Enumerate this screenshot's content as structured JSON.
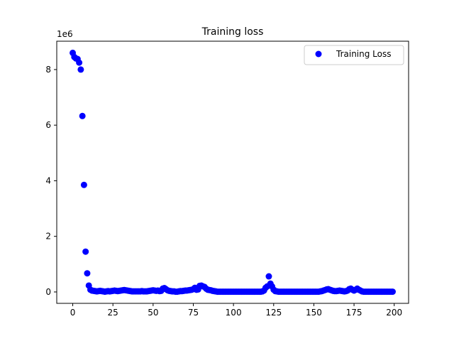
{
  "chart_data": {
    "type": "scatter",
    "title": "Training loss",
    "xlabel": "",
    "ylabel": "",
    "xlim": [
      -9.95,
      208.95
    ],
    "ylim": [
      -410000,
      9020000
    ],
    "x_ticks": [
      0,
      25,
      50,
      75,
      100,
      125,
      150,
      175,
      200
    ],
    "y_ticks": [
      0,
      2000000,
      4000000,
      6000000,
      8000000
    ],
    "y_tick_labels": [
      "0",
      "2",
      "4",
      "6",
      "8"
    ],
    "y_offset_label": "1e6",
    "grid": false,
    "legend_position": "top-right",
    "marker_color": "#0000ff",
    "series": [
      {
        "name": "Training Loss",
        "x": [
          0,
          1,
          2,
          3,
          4,
          5,
          6,
          7,
          8,
          9,
          10,
          11,
          12,
          13,
          14,
          15,
          16,
          17,
          18,
          19,
          20,
          21,
          22,
          23,
          24,
          25,
          26,
          27,
          28,
          29,
          30,
          31,
          32,
          33,
          34,
          35,
          36,
          37,
          38,
          39,
          40,
          41,
          42,
          43,
          44,
          45,
          46,
          47,
          48,
          49,
          50,
          51,
          52,
          53,
          54,
          55,
          56,
          57,
          58,
          59,
          60,
          61,
          62,
          63,
          64,
          65,
          66,
          67,
          68,
          69,
          70,
          71,
          72,
          73,
          74,
          75,
          76,
          77,
          78,
          79,
          80,
          81,
          82,
          83,
          84,
          85,
          86,
          87,
          88,
          89,
          90,
          91,
          92,
          93,
          94,
          95,
          96,
          97,
          98,
          99,
          100,
          101,
          102,
          103,
          104,
          105,
          106,
          107,
          108,
          109,
          110,
          111,
          112,
          113,
          114,
          115,
          116,
          117,
          118,
          119,
          120,
          121,
          122,
          123,
          124,
          125,
          126,
          127,
          128,
          129,
          130,
          131,
          132,
          133,
          134,
          135,
          136,
          137,
          138,
          139,
          140,
          141,
          142,
          143,
          144,
          145,
          146,
          147,
          148,
          149,
          150,
          151,
          152,
          153,
          154,
          155,
          156,
          157,
          158,
          159,
          160,
          161,
          162,
          163,
          164,
          165,
          166,
          167,
          168,
          169,
          170,
          171,
          172,
          173,
          174,
          175,
          176,
          177,
          178,
          179,
          180,
          181,
          182,
          183,
          184,
          185,
          186,
          187,
          188,
          189,
          190,
          191,
          192,
          193,
          194,
          195,
          196,
          197,
          198,
          199
        ],
        "y": [
          8600000,
          8450000,
          8400000,
          8380000,
          8250000,
          8000000,
          6330000,
          3850000,
          1450000,
          670000,
          230000,
          80000,
          50000,
          40000,
          30000,
          20000,
          30000,
          40000,
          30000,
          20000,
          10000,
          20000,
          30000,
          20000,
          30000,
          40000,
          50000,
          40000,
          30000,
          40000,
          50000,
          60000,
          70000,
          60000,
          50000,
          40000,
          30000,
          20000,
          20000,
          20000,
          20000,
          20000,
          20000,
          30000,
          20000,
          20000,
          20000,
          30000,
          40000,
          50000,
          60000,
          50000,
          40000,
          50000,
          30000,
          40000,
          120000,
          140000,
          100000,
          60000,
          40000,
          30000,
          20000,
          20000,
          10000,
          10000,
          20000,
          30000,
          30000,
          40000,
          50000,
          50000,
          60000,
          70000,
          80000,
          100000,
          150000,
          80000,
          90000,
          220000,
          230000,
          200000,
          180000,
          120000,
          80000,
          70000,
          60000,
          40000,
          30000,
          20000,
          10000,
          10000,
          10000,
          10000,
          10000,
          10000,
          10000,
          10000,
          10000,
          10000,
          10000,
          10000,
          10000,
          10000,
          10000,
          10000,
          10000,
          10000,
          10000,
          10000,
          10000,
          10000,
          10000,
          10000,
          10000,
          10000,
          10000,
          10000,
          20000,
          50000,
          150000,
          200000,
          560000,
          300000,
          200000,
          80000,
          30000,
          20000,
          10000,
          10000,
          10000,
          10000,
          10000,
          10000,
          10000,
          10000,
          10000,
          10000,
          10000,
          10000,
          10000,
          10000,
          10000,
          10000,
          10000,
          10000,
          10000,
          10000,
          10000,
          10000,
          10000,
          10000,
          10000,
          10000,
          20000,
          30000,
          50000,
          70000,
          90000,
          100000,
          80000,
          60000,
          40000,
          30000,
          30000,
          40000,
          50000,
          40000,
          30000,
          20000,
          30000,
          50000,
          100000,
          120000,
          80000,
          50000,
          80000,
          120000,
          80000,
          50000,
          20000,
          10000,
          10000,
          10000,
          10000,
          10000,
          10000,
          10000,
          10000,
          10000,
          10000,
          10000,
          10000,
          10000,
          10000,
          10000,
          10000,
          10000,
          10000,
          10000
        ]
      }
    ]
  }
}
